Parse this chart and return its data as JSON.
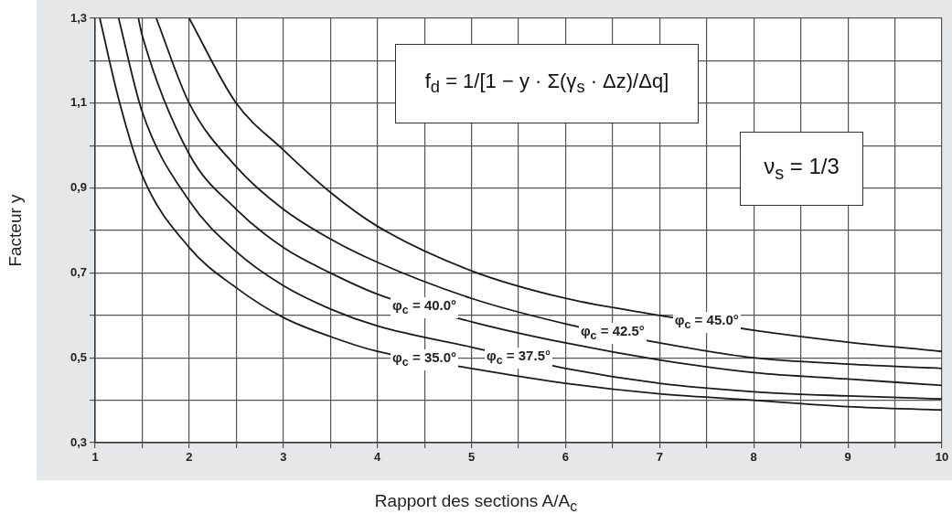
{
  "chart_data": {
    "type": "line",
    "xlabel": "Rapport des sections A/A$_{c}$",
    "ylabel": "Facteur y",
    "annotations": [
      "f$_{d}$ = 1/[1 − y · Σ(γ$_{s}$ · Δz)/Δq]",
      "ν$_{s}$ = 1/3"
    ],
    "series": [
      {
        "name": "φ$_{c}$ = 45.0°",
        "color": "#1a1a1a",
        "x": [
          2.0,
          2.5,
          3,
          3.5,
          4,
          5,
          6,
          7,
          8,
          9,
          10
        ],
        "values": [
          1.3,
          1.1,
          0.99,
          0.89,
          0.81,
          0.705,
          0.64,
          0.6,
          0.565,
          0.537,
          0.515
        ]
      },
      {
        "name": "φ$_{c}$ = 42.5°",
        "color": "#1a1a1a",
        "x": [
          1.65,
          2,
          2.5,
          3,
          3.5,
          4,
          5,
          6,
          7,
          8,
          9,
          10
        ],
        "values": [
          1.3,
          1.1,
          0.95,
          0.85,
          0.78,
          0.725,
          0.64,
          0.58,
          0.535,
          0.5,
          0.485,
          0.475
        ]
      },
      {
        "name": "φ$_{c}$ = 40.0°",
        "color": "#1a1a1a",
        "x": [
          1.46,
          1.5,
          2,
          2.5,
          3,
          3.5,
          4,
          5,
          6,
          7,
          8,
          9,
          10
        ],
        "values": [
          1.3,
          1.26,
          0.98,
          0.85,
          0.76,
          0.7,
          0.65,
          0.585,
          0.535,
          0.495,
          0.465,
          0.45,
          0.435
        ]
      },
      {
        "name": "φ$_{c}$ = 37.5°",
        "color": "#1a1a1a",
        "x": [
          1.25,
          1.5,
          2,
          2.5,
          3,
          3.5,
          4,
          5,
          6,
          7,
          8,
          9,
          10
        ],
        "values": [
          1.3,
          1.08,
          0.87,
          0.75,
          0.67,
          0.615,
          0.575,
          0.525,
          0.475,
          0.44,
          0.42,
          0.41,
          0.403
        ]
      },
      {
        "name": "φ$_{c}$ = 35.0°",
        "color": "#1a1a1a",
        "x": [
          1.05,
          1.25,
          1.5,
          2,
          2.5,
          3,
          3.5,
          4,
          5,
          6,
          7,
          8,
          9,
          10
        ],
        "values": [
          1.3,
          1.11,
          0.93,
          0.76,
          0.665,
          0.595,
          0.55,
          0.515,
          0.475,
          0.44,
          0.415,
          0.4,
          0.385,
          0.377
        ]
      }
    ],
    "xlim": [
      1,
      10
    ],
    "ylim": [
      0.3,
      1.3
    ],
    "xticks": [
      1,
      {
        "value": 1.5,
        "label": null
      },
      2,
      {
        "value": 2.5,
        "label": null
      },
      3,
      {
        "value": 3.5,
        "label": null
      },
      4,
      {
        "value": 4.5,
        "label": null
      },
      5,
      {
        "value": 5.5,
        "label": null
      },
      6,
      {
        "value": 6.5,
        "label": null
      },
      7,
      {
        "value": 7.5,
        "label": null
      },
      8,
      {
        "value": 8.5,
        "label": null
      },
      9,
      {
        "value": 9.5,
        "label": null
      },
      10
    ],
    "yticks": [
      {
        "value": 0.3,
        "label": "0,3"
      },
      {
        "value": 0.4,
        "label": null
      },
      {
        "value": 0.5,
        "label": "0,5"
      },
      {
        "value": 0.6,
        "label": null
      },
      {
        "value": 0.7,
        "label": "0,7"
      },
      {
        "value": 0.8,
        "label": null
      },
      {
        "value": 0.9,
        "label": "0,9"
      },
      {
        "value": 1.0,
        "label": null
      },
      {
        "value": 1.1,
        "label": "1,1"
      },
      {
        "value": 1.2,
        "label": null
      },
      {
        "value": 1.3,
        "label": "1,3"
      }
    ],
    "grid": true,
    "legend": false,
    "marker": "none",
    "line_style": "solid"
  }
}
